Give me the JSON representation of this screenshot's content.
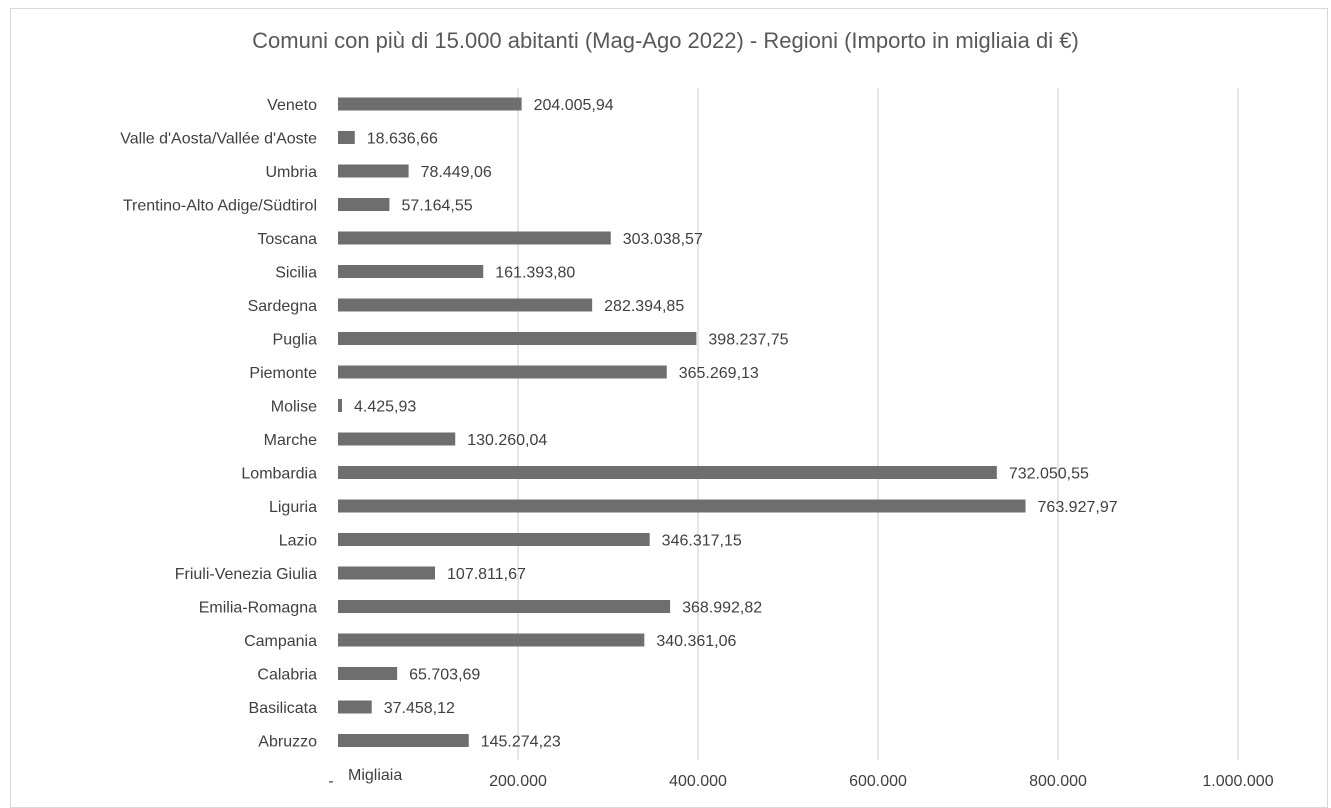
{
  "chart_data": {
    "type": "bar",
    "orientation": "horizontal",
    "title": "Comuni con più di 15.000 abitanti (Mag-Ago 2022) - Regioni (Importo in migliaia di €)",
    "xlabel": "Migliaia",
    "ylabel": "",
    "xlim": [
      0,
      1000000
    ],
    "x_ticks": [
      0,
      200000,
      400000,
      600000,
      800000,
      1000000
    ],
    "x_tick_labels": [
      "-",
      "200.000",
      "400.000",
      "600.000",
      "800.000",
      "1.000.000"
    ],
    "grid": true,
    "legend": "none",
    "bar_color": "#6e6e6e",
    "categories": [
      "Veneto",
      "Valle d'Aosta/Vallée d'Aoste",
      "Umbria",
      "Trentino-Alto Adige/Südtirol",
      "Toscana",
      "Sicilia",
      "Sardegna",
      "Puglia",
      "Piemonte",
      "Molise",
      "Marche",
      "Lombardia",
      "Liguria",
      "Lazio",
      "Friuli-Venezia Giulia",
      "Emilia-Romagna",
      "Campania",
      "Calabria",
      "Basilicata",
      "Abruzzo"
    ],
    "values": [
      204005.94,
      18636.66,
      78449.06,
      57164.55,
      303038.57,
      161393.8,
      282394.85,
      398237.75,
      365269.13,
      4425.93,
      130260.04,
      732050.55,
      763927.97,
      346317.15,
      107811.67,
      368992.82,
      340361.06,
      65703.69,
      37458.12,
      145274.23
    ],
    "value_labels": [
      "204.005,94",
      "18.636,66",
      "78.449,06",
      "57.164,55",
      "303.038,57",
      "161.393,80",
      "282.394,85",
      "398.237,75",
      "365.269,13",
      "4.425,93",
      "130.260,04",
      "732.050,55",
      "763.927,97",
      "346.317,15",
      "107.811,67",
      "368.992,82",
      "340.361,06",
      "65.703,69",
      "37.458,12",
      "145.274,23"
    ]
  }
}
